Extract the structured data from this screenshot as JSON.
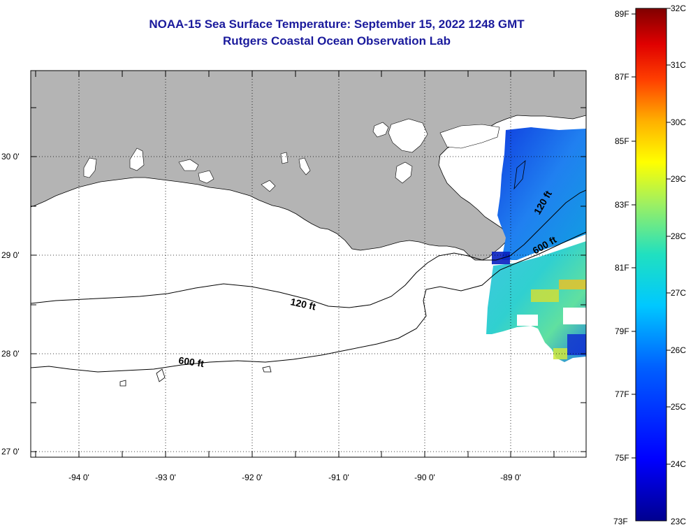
{
  "title": {
    "line1": "NOAA-15 Sea Surface Temperature:  September 15, 2022 1248 GMT",
    "line2": "Rutgers Coastal Ocean Observation Lab"
  },
  "map": {
    "region": "Northern Gulf of Mexico / Louisiana coast",
    "lat_labels": [
      "30 0'",
      "29 0'",
      "28 0'",
      "27 0'"
    ],
    "lon_labels": [
      "-94 0'",
      "-93 0'",
      "-92 0'",
      "-91 0'",
      "-90 0'",
      "-89 0'"
    ],
    "contour_labels": [
      "120 ft",
      "600 ft",
      "120 ft",
      "600 ft"
    ],
    "land_color": "#b4b4b4",
    "water_color": "#ffffff"
  },
  "colorbar": {
    "fahrenheit_labels": [
      "89F",
      "87F",
      "85F",
      "83F",
      "81F",
      "79F",
      "77F",
      "75F",
      "73F"
    ],
    "celsius_labels": [
      "32C",
      "31C",
      "30C",
      "29C",
      "28C",
      "27C",
      "26C",
      "25C",
      "24C",
      "23C"
    ],
    "min_c": 23,
    "max_c": 32
  }
}
